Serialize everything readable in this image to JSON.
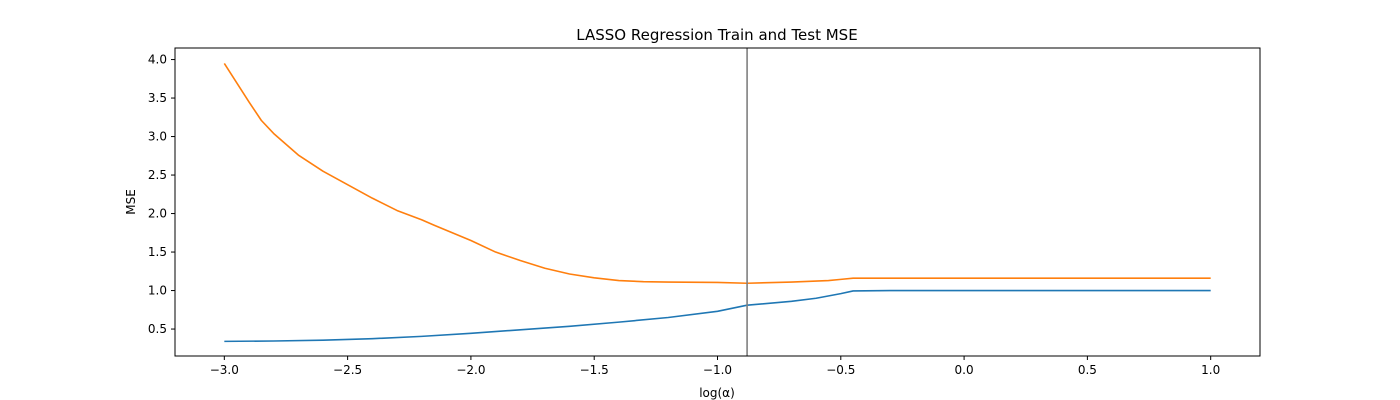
{
  "chart_data": {
    "type": "line",
    "title": "LASSO Regression Train and Test MSE",
    "xlabel": "log(α)",
    "ylabel": "MSE",
    "xlim": [
      -3.2,
      1.2
    ],
    "ylim": [
      0.15,
      4.15
    ],
    "x_ticks": [
      -3.0,
      -2.5,
      -2.0,
      -1.5,
      -1.0,
      -0.5,
      0.0,
      0.5,
      1.0
    ],
    "x_tick_labels": [
      "−3.0",
      "−2.5",
      "−2.0",
      "−1.5",
      "−1.0",
      "−0.5",
      "0.0",
      "0.5",
      "1.0"
    ],
    "y_ticks": [
      0.5,
      1.0,
      1.5,
      2.0,
      2.5,
      3.0,
      3.5,
      4.0
    ],
    "y_tick_labels": [
      "0.5",
      "1.0",
      "1.5",
      "2.0",
      "2.5",
      "3.0",
      "3.5",
      "4.0"
    ],
    "grid": false,
    "vline": {
      "x": -0.88,
      "color": "#808080"
    },
    "series": [
      {
        "color": "#1f77b4",
        "x": [
          -3.0,
          -2.8,
          -2.6,
          -2.4,
          -2.2,
          -2.0,
          -1.8,
          -1.6,
          -1.4,
          -1.2,
          -1.0,
          -0.88,
          -0.7,
          -0.6,
          -0.5,
          -0.45,
          -0.3,
          0.0,
          0.5,
          1.0
        ],
        "y": [
          0.34,
          0.345,
          0.355,
          0.375,
          0.405,
          0.445,
          0.49,
          0.535,
          0.59,
          0.65,
          0.73,
          0.81,
          0.86,
          0.9,
          0.96,
          0.995,
          1.0,
          1.0,
          1.0,
          1.0
        ]
      },
      {
        "color": "#ff7f0e",
        "x": [
          -3.0,
          -2.95,
          -2.9,
          -2.85,
          -2.8,
          -2.7,
          -2.6,
          -2.4,
          -2.3,
          -2.2,
          -2.15,
          -2.0,
          -1.9,
          -1.8,
          -1.7,
          -1.6,
          -1.5,
          -1.4,
          -1.3,
          -1.2,
          -1.0,
          -0.88,
          -0.7,
          -0.55,
          -0.5,
          -0.45,
          -0.3,
          0.0,
          0.5,
          1.0
        ],
        "y": [
          3.95,
          3.7,
          3.45,
          3.21,
          3.04,
          2.76,
          2.55,
          2.2,
          2.04,
          1.92,
          1.85,
          1.65,
          1.5,
          1.39,
          1.29,
          1.215,
          1.165,
          1.13,
          1.115,
          1.11,
          1.105,
          1.095,
          1.11,
          1.13,
          1.145,
          1.16,
          1.16,
          1.16,
          1.16,
          1.16
        ]
      }
    ]
  }
}
